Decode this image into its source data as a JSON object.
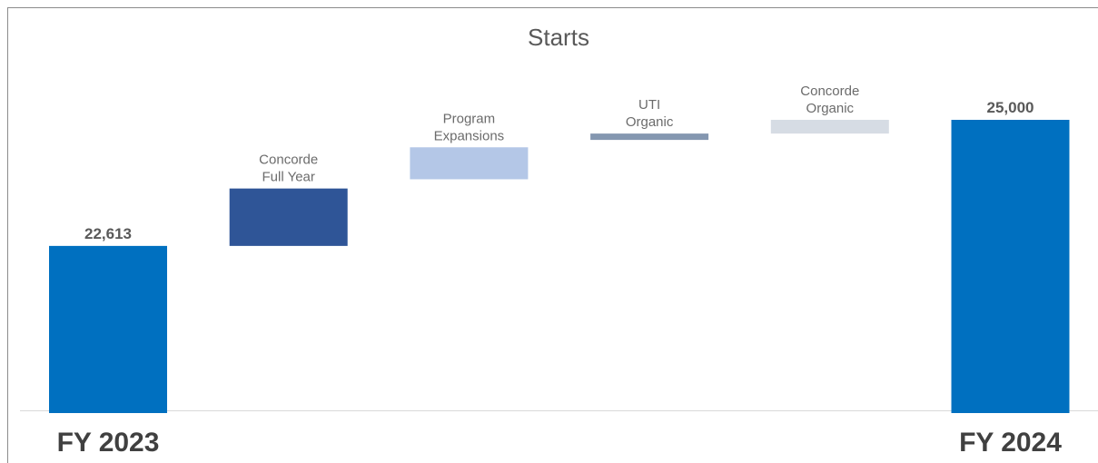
{
  "chart_data": {
    "type": "bar",
    "subtype": "waterfall",
    "title": "Starts",
    "categories": [
      "FY 2023",
      "Concorde Full Year",
      "Program Expansions",
      "UTI Organic",
      "Concorde Organic",
      "FY 2024"
    ],
    "bars": [
      {
        "label": "FY 2023",
        "kind": "total",
        "value": 22613,
        "value_label": "22,613",
        "color": "#0070c0"
      },
      {
        "label": "Concorde Full Year",
        "label_lines": [
          "Concorde",
          "Full Year"
        ],
        "kind": "delta",
        "start": 22613,
        "end": 23700,
        "color": "#2f5597"
      },
      {
        "label": "Program Expansions",
        "label_lines": [
          "Program",
          "Expansions"
        ],
        "kind": "delta",
        "start": 23875,
        "end": 24480,
        "color": "#b4c7e7"
      },
      {
        "label": "UTI Organic",
        "label_lines": [
          "UTI",
          "Organic"
        ],
        "kind": "delta",
        "start": 24620,
        "end": 24740,
        "color": "#8497b0"
      },
      {
        "label": "Concorde Organic",
        "label_lines": [
          "Concorde",
          "Organic"
        ],
        "kind": "delta",
        "start": 24740,
        "end": 25000,
        "color": "#d6dce4"
      },
      {
        "label": "FY 2024",
        "kind": "total",
        "value": 25000,
        "value_label": "25,000",
        "color": "#0070c0"
      }
    ],
    "xlabel": "",
    "ylabel": "",
    "ylim": [
      19500,
      25000
    ],
    "grid": false,
    "legend": "none",
    "colors": {
      "frame": "#8c8c8c",
      "baseline": "#d9d9d9"
    }
  }
}
